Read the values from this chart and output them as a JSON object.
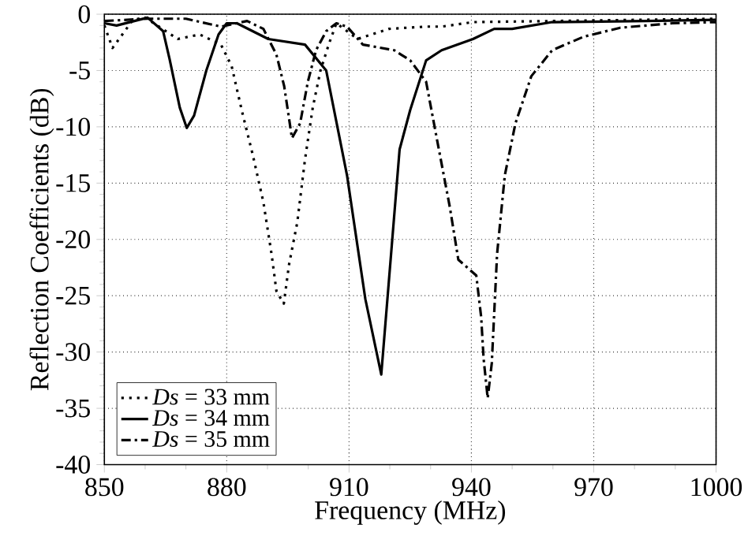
{
  "chart_data": {
    "type": "line",
    "xlabel": "Frequency (MHz)",
    "ylabel": "Reflection Coefficients (dB)",
    "xlim": [
      850,
      1000
    ],
    "xticks": [
      850,
      880,
      910,
      940,
      970,
      1000
    ],
    "ylim": [
      -40,
      0
    ],
    "yticks": [
      -40,
      -35,
      -30,
      -25,
      -20,
      -15,
      -10,
      -5,
      0
    ],
    "grid": true,
    "legend": "bottom left",
    "marker": "none",
    "series": [
      {
        "name": "*Ds* = 33 mm",
        "color": "#000000",
        "line_style": "dotted",
        "x": [
          850,
          852,
          857,
          860,
          868,
          873.4,
          878.6,
          881.2,
          883.8,
          886.4,
          889,
          891,
          892.2,
          894,
          895.3,
          897.3,
          899.2,
          901.1,
          903,
          905,
          906.9,
          912.1,
          919.8,
          928.9,
          932.7,
          940.4,
          960,
          980,
          1000
        ],
        "values": [
          -1,
          -3,
          -0.5,
          -0.3,
          -2.2,
          -1.8,
          -2.7,
          -4.6,
          -8.7,
          -12.5,
          -16.7,
          -21.3,
          -24.6,
          -25.7,
          -22.2,
          -18.5,
          -12.9,
          -8.3,
          -5,
          -2.7,
          -0.8,
          -2.2,
          -1.3,
          -1.1,
          -1.1,
          -0.7,
          -0.6,
          -0.5,
          -0.4
        ]
      },
      {
        "name": "*Ds* = 34 mm",
        "color": "#000000",
        "line_style": "solid",
        "x": [
          850,
          853,
          860.6,
          864.4,
          866,
          868.5,
          870.2,
          872,
          875,
          878,
          880,
          882.5,
          890.2,
          899.2,
          904.4,
          909.5,
          914,
          917.9,
          922.4,
          925,
          928.9,
          932.7,
          940.4,
          945.6,
          950,
          959.8,
          983,
          1000
        ],
        "values": [
          -0.8,
          -1,
          -0.3,
          -1.5,
          -4,
          -8.3,
          -10.1,
          -9,
          -5,
          -1.8,
          -0.8,
          -0.8,
          -2.2,
          -2.7,
          -5,
          -14.3,
          -25.3,
          -32,
          -12,
          -8.5,
          -4.1,
          -3.2,
          -2.2,
          -1.3,
          -1.3,
          -0.7,
          -0.6,
          -0.5
        ]
      },
      {
        "name": "*Ds* = 35 mm",
        "color": "#000000",
        "line_style": "dashdotted",
        "x": [
          850,
          860.6,
          870,
          878.6,
          885,
          889,
          892.2,
          894.1,
          896,
          898,
          899.9,
          901.9,
          904.4,
          906.9,
          909.5,
          913.4,
          921.1,
          925,
          928.9,
          931.5,
          934.7,
          936.8,
          939,
          941.2,
          942.4,
          943,
          944,
          945,
          946.3,
          948.2,
          950.8,
          954.7,
          959.8,
          967.5,
          976.5,
          989.4,
          1000
        ],
        "values": [
          -0.6,
          -0.4,
          -0.4,
          -1.1,
          -0.6,
          -1.3,
          -3.6,
          -6.4,
          -11,
          -9.7,
          -6,
          -3.2,
          -1.5,
          -0.8,
          -1.1,
          -2.7,
          -3.2,
          -4.1,
          -6,
          -11,
          -17.1,
          -21.8,
          -22.5,
          -23.2,
          -26.9,
          -30.6,
          -34.1,
          -31,
          -21.3,
          -14.3,
          -9.7,
          -5.5,
          -3.2,
          -2,
          -1.2,
          -0.8,
          -0.7
        ]
      }
    ]
  }
}
